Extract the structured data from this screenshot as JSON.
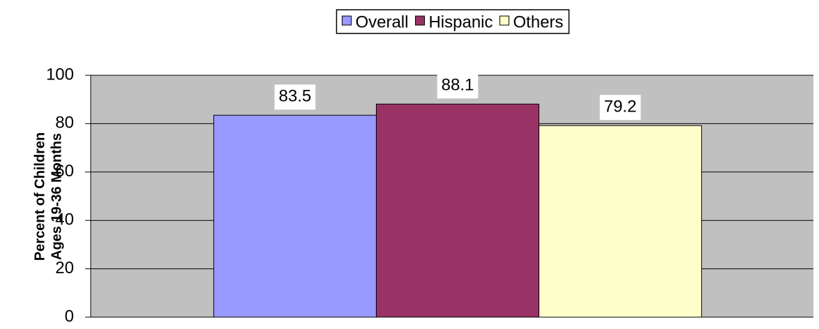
{
  "chart_data": {
    "type": "bar",
    "y_label": [
      "Percent of Children",
      "Ages 19-36 Months"
    ],
    "categories": [
      null
    ],
    "series": [
      {
        "name": "Overall",
        "color": "#9999ff",
        "values": [
          83.5
        ]
      },
      {
        "name": "Hispanic",
        "color": "#993366",
        "values": [
          88.1
        ]
      },
      {
        "name": "Others",
        "color": "#ffffcc",
        "values": [
          79.2
        ]
      }
    ],
    "ylim": [
      0,
      100
    ],
    "yticks": [
      0,
      20,
      40,
      60,
      80,
      100
    ],
    "grid": true,
    "plot_background": "#c0c0c0",
    "legend": "top"
  }
}
